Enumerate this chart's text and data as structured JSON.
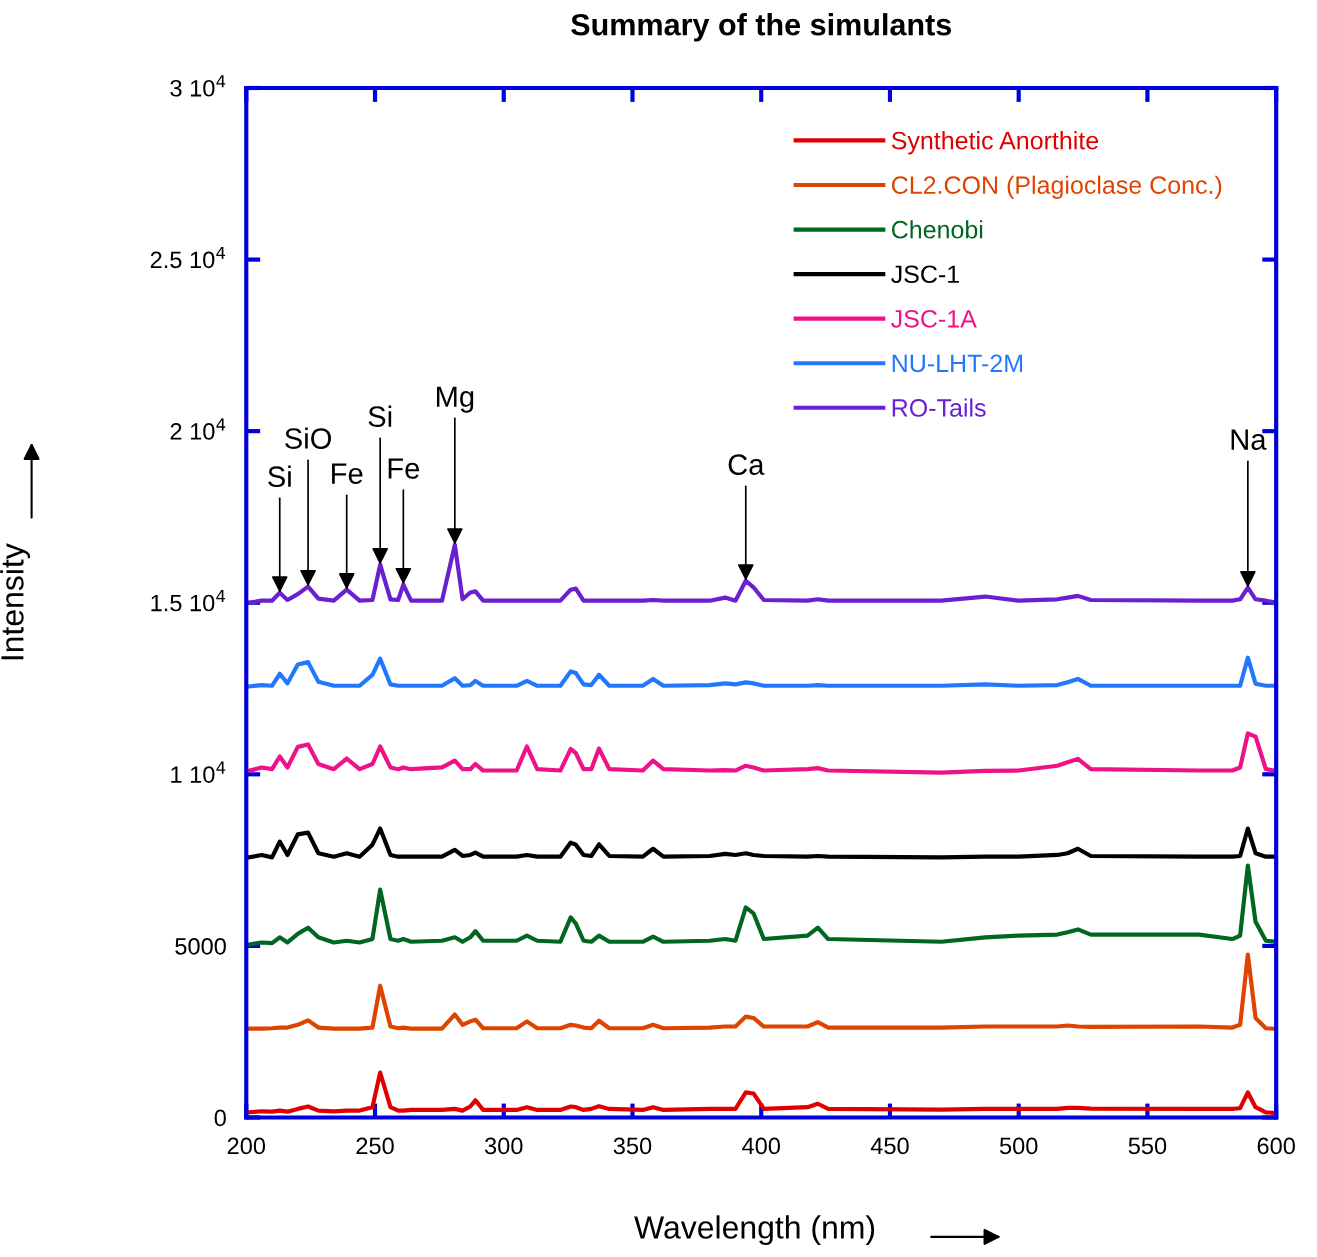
{
  "chart_data": {
    "type": "line",
    "title": "Summary of the simulants",
    "xlabel": "Wavelength (nm)",
    "ylabel": "Intensity",
    "x": [
      201,
      206,
      210,
      213,
      216,
      220,
      224,
      228,
      234,
      239,
      244,
      249,
      252,
      256,
      259,
      261,
      264,
      276,
      281,
      284,
      287,
      289,
      292,
      305,
      309,
      313,
      322,
      326,
      328,
      331,
      334,
      337,
      341,
      354,
      358,
      362,
      380,
      386,
      390,
      394,
      397,
      401,
      418,
      422,
      426,
      470,
      487,
      500,
      515,
      519,
      523,
      528,
      570,
      583,
      586,
      589,
      592,
      596,
      600
    ],
    "series": [
      {
        "name": "Synthetic Anorthite",
        "color": "#e00000",
        "values": [
          150,
          180,
          170,
          200,
          170,
          250,
          320,
          200,
          180,
          200,
          200,
          300,
          1310,
          300,
          200,
          200,
          220,
          220,
          250,
          200,
          320,
          500,
          220,
          220,
          300,
          220,
          220,
          320,
          300,
          220,
          250,
          330,
          250,
          220,
          300,
          220,
          250,
          250,
          250,
          730,
          700,
          250,
          300,
          400,
          250,
          230,
          250,
          250,
          250,
          280,
          280,
          260,
          250,
          250,
          270,
          730,
          300,
          150,
          130
        ]
      },
      {
        "name": "CL2.CON (Plagioclase Conc.)",
        "color": "#dd4400",
        "values": [
          2590,
          2590,
          2600,
          2620,
          2620,
          2700,
          2830,
          2620,
          2590,
          2590,
          2590,
          2620,
          3840,
          2650,
          2600,
          2620,
          2590,
          2590,
          3000,
          2700,
          2800,
          2850,
          2600,
          2600,
          2800,
          2600,
          2600,
          2700,
          2680,
          2620,
          2600,
          2820,
          2600,
          2600,
          2700,
          2600,
          2620,
          2650,
          2650,
          2940,
          2900,
          2650,
          2650,
          2780,
          2620,
          2620,
          2650,
          2650,
          2650,
          2680,
          2650,
          2640,
          2650,
          2620,
          2700,
          4750,
          2900,
          2600,
          2580
        ]
      },
      {
        "name": "Chenobi",
        "color": "#006620",
        "values": [
          5040,
          5100,
          5080,
          5250,
          5100,
          5350,
          5530,
          5250,
          5100,
          5150,
          5100,
          5200,
          6640,
          5200,
          5150,
          5200,
          5120,
          5150,
          5250,
          5120,
          5250,
          5430,
          5150,
          5150,
          5300,
          5150,
          5120,
          5830,
          5650,
          5150,
          5120,
          5300,
          5120,
          5120,
          5270,
          5120,
          5150,
          5200,
          5150,
          6120,
          5950,
          5200,
          5300,
          5530,
          5200,
          5120,
          5250,
          5300,
          5330,
          5400,
          5480,
          5330,
          5330,
          5200,
          5300,
          7340,
          5700,
          5150,
          5120
        ]
      },
      {
        "name": "JSC-1",
        "color": "#000000",
        "values": [
          7580,
          7650,
          7580,
          8040,
          7650,
          8250,
          8300,
          7700,
          7600,
          7700,
          7600,
          7950,
          8420,
          7650,
          7600,
          7600,
          7600,
          7600,
          7800,
          7620,
          7650,
          7720,
          7600,
          7600,
          7650,
          7600,
          7600,
          8010,
          7950,
          7650,
          7620,
          7960,
          7620,
          7600,
          7830,
          7600,
          7620,
          7680,
          7650,
          7700,
          7650,
          7620,
          7600,
          7620,
          7600,
          7580,
          7600,
          7600,
          7650,
          7700,
          7830,
          7620,
          7600,
          7600,
          7620,
          8420,
          7700,
          7600,
          7600
        ]
      },
      {
        "name": "JSC-1A",
        "color": "#ee1188",
        "values": [
          10100,
          10200,
          10150,
          10520,
          10200,
          10800,
          10870,
          10300,
          10150,
          10460,
          10150,
          10300,
          10810,
          10200,
          10150,
          10200,
          10150,
          10200,
          10400,
          10150,
          10150,
          10300,
          10110,
          10110,
          10810,
          10150,
          10110,
          10740,
          10620,
          10150,
          10150,
          10750,
          10150,
          10110,
          10400,
          10150,
          10110,
          10120,
          10110,
          10250,
          10200,
          10110,
          10150,
          10180,
          10110,
          10050,
          10100,
          10110,
          10250,
          10350,
          10450,
          10150,
          10110,
          10110,
          10200,
          11190,
          11100,
          10150,
          10100
        ]
      },
      {
        "name": "NU-LHT-2M",
        "color": "#2277ff",
        "values": [
          12560,
          12600,
          12580,
          12930,
          12650,
          13200,
          13270,
          12700,
          12580,
          12580,
          12580,
          12900,
          13370,
          12620,
          12580,
          12580,
          12580,
          12580,
          12800,
          12580,
          12600,
          12720,
          12580,
          12580,
          12720,
          12580,
          12580,
          13000,
          12950,
          12620,
          12600,
          12900,
          12580,
          12580,
          12780,
          12580,
          12600,
          12650,
          12620,
          12680,
          12650,
          12580,
          12580,
          12600,
          12580,
          12580,
          12620,
          12580,
          12600,
          12680,
          12780,
          12580,
          12580,
          12580,
          12580,
          13400,
          12640,
          12580,
          12580
        ]
      },
      {
        "name": "RO-Tails",
        "color": "#6a1fd0",
        "values": [
          15000,
          15060,
          15060,
          15290,
          15080,
          15250,
          15470,
          15120,
          15060,
          15380,
          15060,
          15080,
          16110,
          15100,
          15080,
          15530,
          15060,
          15060,
          16690,
          15100,
          15300,
          15330,
          15060,
          15060,
          15060,
          15060,
          15060,
          15380,
          15410,
          15060,
          15060,
          15060,
          15060,
          15060,
          15080,
          15060,
          15060,
          15150,
          15060,
          15640,
          15450,
          15080,
          15060,
          15100,
          15060,
          15060,
          15180,
          15060,
          15100,
          15150,
          15200,
          15080,
          15060,
          15060,
          15100,
          15440,
          15100,
          15060,
          15000
        ]
      }
    ],
    "xlim": [
      200,
      600
    ],
    "xticks": [
      200,
      250,
      300,
      350,
      400,
      450,
      500,
      550,
      600
    ],
    "ylim": [
      0,
      30000
    ],
    "yticks": [
      0,
      5000,
      {
        "value": 10000,
        "label": "1 10$^{4}$"
      },
      {
        "value": 15000,
        "label": "1.5 10$^{4}$"
      },
      {
        "value": 20000,
        "label": "2 10$^{4}$"
      },
      {
        "value": 25000,
        "label": "2.5 10$^{4}$"
      },
      {
        "value": 30000,
        "label": "3 10$^{4}$"
      }
    ],
    "annotations": [
      {
        "text": "Si",
        "x": 213,
        "y": 15290
      },
      {
        "text": "SiO",
        "x": 224,
        "y": 15470
      },
      {
        "text": "Fe",
        "x": 239,
        "y": 15380
      },
      {
        "text": "Si",
        "x": 252,
        "y": 16110
      },
      {
        "text": "Fe",
        "x": 261,
        "y": 15530
      },
      {
        "text": "Mg",
        "x": 281,
        "y": 16690
      },
      {
        "text": "Ca",
        "x": 394,
        "y": 15640
      },
      {
        "text": "Na",
        "x": 589,
        "y": 15440
      }
    ],
    "legend": "top right"
  }
}
